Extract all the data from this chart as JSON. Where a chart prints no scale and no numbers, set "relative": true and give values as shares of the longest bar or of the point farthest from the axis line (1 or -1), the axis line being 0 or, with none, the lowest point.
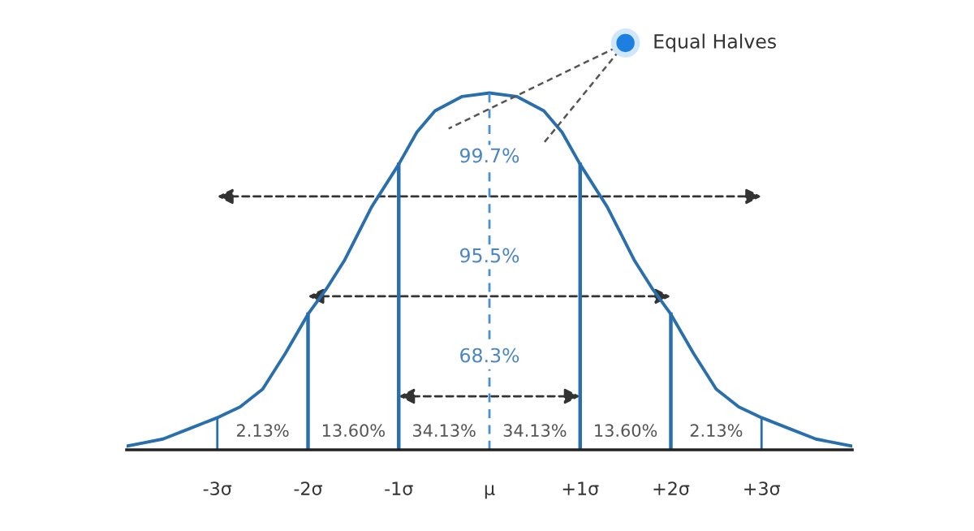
{
  "chart_data": {
    "type": "line",
    "relative": true,
    "x": [
      -4,
      -3.8,
      -3.6,
      -3.3,
      -3,
      -2.75,
      -2.5,
      -2.25,
      -2,
      -1.8,
      -1.6,
      -1.3,
      -1,
      -0.8,
      -0.6,
      -0.3,
      0,
      0.3,
      0.6,
      0.8,
      1,
      1.3,
      1.6,
      1.8,
      2,
      2.25,
      2.5,
      2.75,
      3,
      3.3,
      3.6,
      3.8,
      4
    ],
    "series": [
      {
        "color": "#2a6fad",
        "values": [
          0.01,
          0.02,
          0.03,
          0.06,
          0.09,
          0.12,
          0.17,
          0.27,
          0.38,
          0.45,
          0.53,
          0.68,
          0.8,
          0.89,
          0.95,
          0.99,
          1,
          0.99,
          0.95,
          0.89,
          0.8,
          0.68,
          0.53,
          0.45,
          0.38,
          0.27,
          0.17,
          0.12,
          0.09,
          0.06,
          0.03,
          0.02,
          0.01
        ]
      }
    ],
    "xlim": [
      -4,
      4
    ],
    "xticks": [
      {
        "value": -3,
        "label": "-3σ"
      },
      {
        "value": -2,
        "label": "-2σ"
      },
      {
        "value": -1,
        "label": "-1σ"
      },
      {
        "value": 0,
        "label": "μ"
      },
      {
        "value": 1,
        "label": "+1σ"
      },
      {
        "value": 2,
        "label": "+2σ"
      },
      {
        "value": 3,
        "label": "+3σ"
      }
    ],
    "tick_labels": "x",
    "grid": false,
    "legend": false,
    "ref_lines": [
      {
        "axis": "x",
        "value": -3,
        "color": "#2a6fad",
        "line_style": "solid"
      },
      {
        "axis": "x",
        "value": -2,
        "color": "#2a6fad",
        "line_style": "solid"
      },
      {
        "axis": "x",
        "value": -1,
        "color": "#2a6fad",
        "line_style": "solid"
      },
      {
        "axis": "x",
        "value": 0,
        "color": "#4a8fd0",
        "line_style": "dashed"
      },
      {
        "axis": "x",
        "value": 1,
        "color": "#2a6fad",
        "line_style": "solid"
      },
      {
        "axis": "x",
        "value": 2,
        "color": "#2a6fad",
        "line_style": "solid"
      },
      {
        "axis": "x",
        "value": 3,
        "color": "#2a6fad",
        "line_style": "solid"
      }
    ],
    "annotations": [
      "99.7%",
      "95.5%",
      "68.3%",
      "2.13%",
      "13.60%",
      "34.13%",
      "34.13%",
      "13.60%",
      "2.13%",
      "Equal Halves"
    ]
  }
}
